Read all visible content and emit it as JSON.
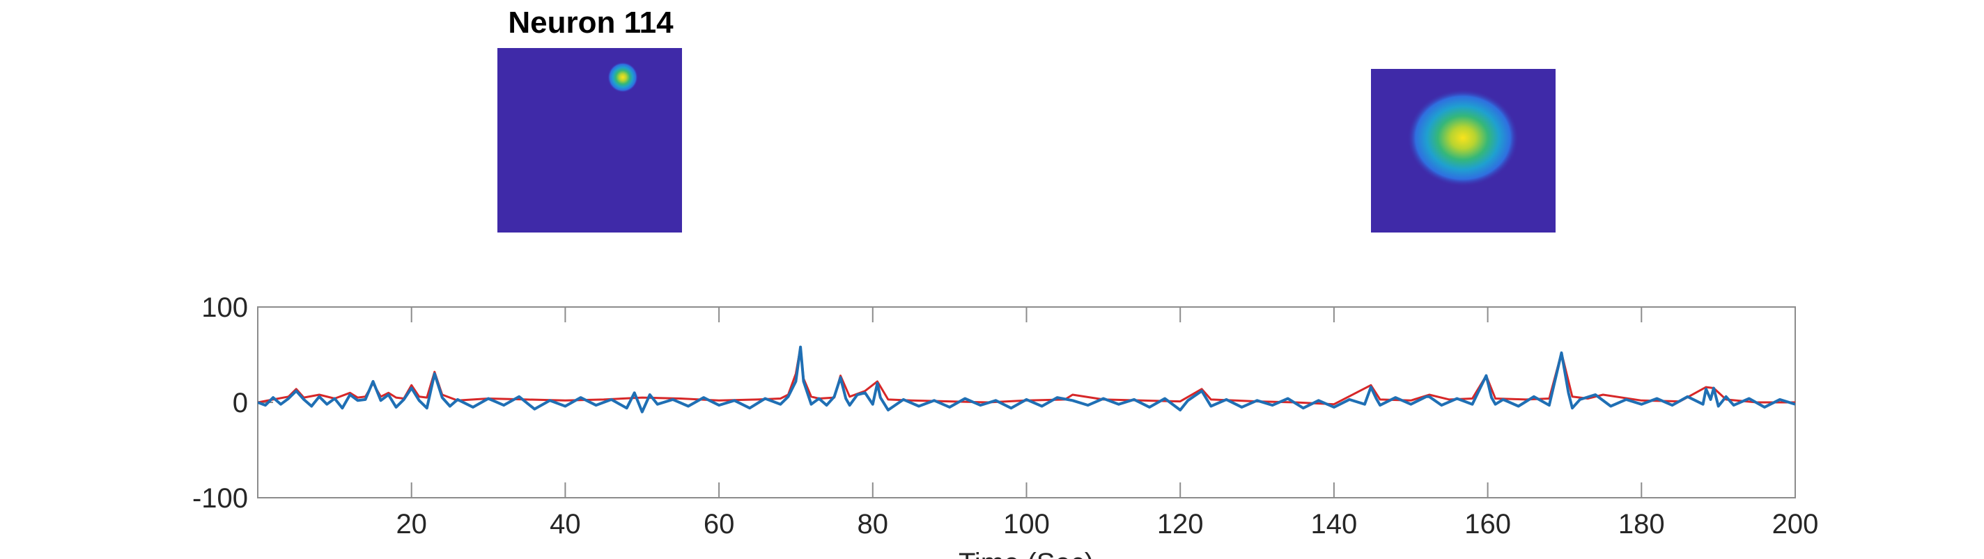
{
  "figure": {
    "title": "Neuron 114"
  },
  "spatial_footprints": [
    {
      "name": "roi-full",
      "background": "#3f2aa8",
      "blob_center": [
        0.68,
        0.16
      ],
      "blob_radius": 0.09
    },
    {
      "name": "roi-zoom",
      "background": "#3f2aa8",
      "blob_center": [
        0.5,
        0.42
      ],
      "blob_radius": 0.3
    }
  ],
  "colors": {
    "trace_denoised": "#d62728",
    "trace_raw": "#1f6fb4",
    "axis": "#8c8c8c",
    "text": "#262626"
  },
  "chart_data": {
    "type": "line",
    "title": "",
    "xlabel": "Time (Sec)",
    "ylabel": "",
    "xlim": [
      0,
      200
    ],
    "ylim": [
      -100,
      100
    ],
    "xticks": [
      20,
      40,
      60,
      80,
      100,
      120,
      140,
      160,
      180,
      200
    ],
    "yticks": [
      -100,
      0,
      100
    ],
    "series": [
      {
        "color": "#d62728",
        "x": [
          0,
          2,
          4,
          5,
          6,
          8,
          10,
          12,
          13,
          14,
          15,
          16,
          17,
          18,
          19,
          20,
          21,
          22,
          23,
          24,
          26,
          30,
          35,
          40,
          45,
          50,
          55,
          60,
          65,
          68,
          69,
          70,
          70.6,
          71,
          72,
          73,
          75,
          75.8,
          77,
          79,
          80.6,
          82,
          85,
          90,
          95,
          100,
          105,
          106,
          110,
          115,
          120,
          122.8,
          124,
          130,
          135,
          140,
          144.8,
          146,
          150,
          152.4,
          155,
          158,
          159.8,
          161,
          165,
          168,
          169.6,
          171,
          173,
          175,
          180,
          185,
          188.4,
          189.4,
          191,
          195,
          200
        ],
        "values": [
          0,
          3,
          6,
          14,
          5,
          8,
          4,
          10,
          5,
          6,
          20,
          6,
          10,
          5,
          4,
          18,
          6,
          5,
          32,
          8,
          2,
          4,
          3,
          2,
          3,
          5,
          4,
          2,
          3,
          4,
          8,
          30,
          58,
          25,
          6,
          4,
          5,
          28,
          6,
          12,
          22,
          3,
          2,
          1,
          0,
          2,
          3,
          8,
          3,
          2,
          1,
          14,
          3,
          1,
          0,
          -2,
          18,
          3,
          2,
          8,
          3,
          4,
          28,
          4,
          3,
          4,
          52,
          6,
          4,
          8,
          2,
          1,
          16,
          15,
          3,
          0,
          0
        ]
      },
      {
        "color": "#1f6fb4",
        "x": [
          0,
          1,
          2,
          3,
          4,
          5,
          6,
          7,
          8,
          9,
          10,
          11,
          12,
          13,
          14,
          15,
          16,
          17,
          18,
          19,
          20,
          21,
          22,
          23,
          24,
          25,
          26,
          28,
          30,
          32,
          34,
          36,
          38,
          40,
          42,
          44,
          46,
          48,
          49,
          50,
          51,
          52,
          54,
          56,
          58,
          60,
          62,
          64,
          66,
          68,
          69,
          70,
          70.6,
          71,
          72,
          73,
          74,
          75,
          75.8,
          76.5,
          77,
          78,
          79,
          80,
          80.6,
          81,
          82,
          84,
          86,
          88,
          90,
          92,
          94,
          96,
          98,
          100,
          102,
          104,
          106,
          108,
          110,
          112,
          114,
          116,
          118,
          120,
          121,
          122.8,
          124,
          126,
          128,
          130,
          132,
          134,
          136,
          138,
          140,
          142,
          144,
          144.8,
          145.5,
          146,
          148,
          150,
          152,
          152.4,
          154,
          156,
          158,
          159.8,
          160.5,
          161,
          162,
          164,
          166,
          168,
          169.6,
          170.5,
          171,
          172,
          174,
          176,
          178,
          180,
          182,
          184,
          186,
          188,
          188.4,
          189,
          189.4,
          190,
          191,
          192,
          194,
          196,
          198,
          200
        ],
        "values": [
          0,
          -3,
          5,
          -2,
          4,
          12,
          3,
          -4,
          6,
          -2,
          4,
          -6,
          8,
          2,
          3,
          22,
          2,
          8,
          -5,
          3,
          15,
          2,
          -6,
          30,
          5,
          -4,
          3,
          -5,
          4,
          -3,
          6,
          -7,
          2,
          -4,
          5,
          -3,
          3,
          -6,
          10,
          -10,
          8,
          -2,
          3,
          -4,
          5,
          -3,
          2,
          -6,
          4,
          -2,
          6,
          22,
          58,
          22,
          -2,
          4,
          -3,
          6,
          26,
          4,
          -3,
          8,
          10,
          -2,
          20,
          5,
          -8,
          3,
          -4,
          2,
          -5,
          4,
          -3,
          2,
          -6,
          3,
          -4,
          5,
          2,
          -3,
          4,
          -2,
          3,
          -5,
          4,
          -8,
          2,
          12,
          -4,
          3,
          -5,
          2,
          -3,
          4,
          -6,
          2,
          -5,
          3,
          -2,
          16,
          4,
          -3,
          5,
          -2,
          6,
          6,
          -3,
          4,
          -2,
          28,
          5,
          -2,
          3,
          -4,
          6,
          -3,
          52,
          10,
          -6,
          3,
          8,
          -4,
          3,
          -2,
          4,
          -3,
          6,
          -2,
          14,
          3,
          15,
          -4,
          6,
          -3,
          4,
          -5,
          3,
          -2
        ]
      }
    ]
  }
}
